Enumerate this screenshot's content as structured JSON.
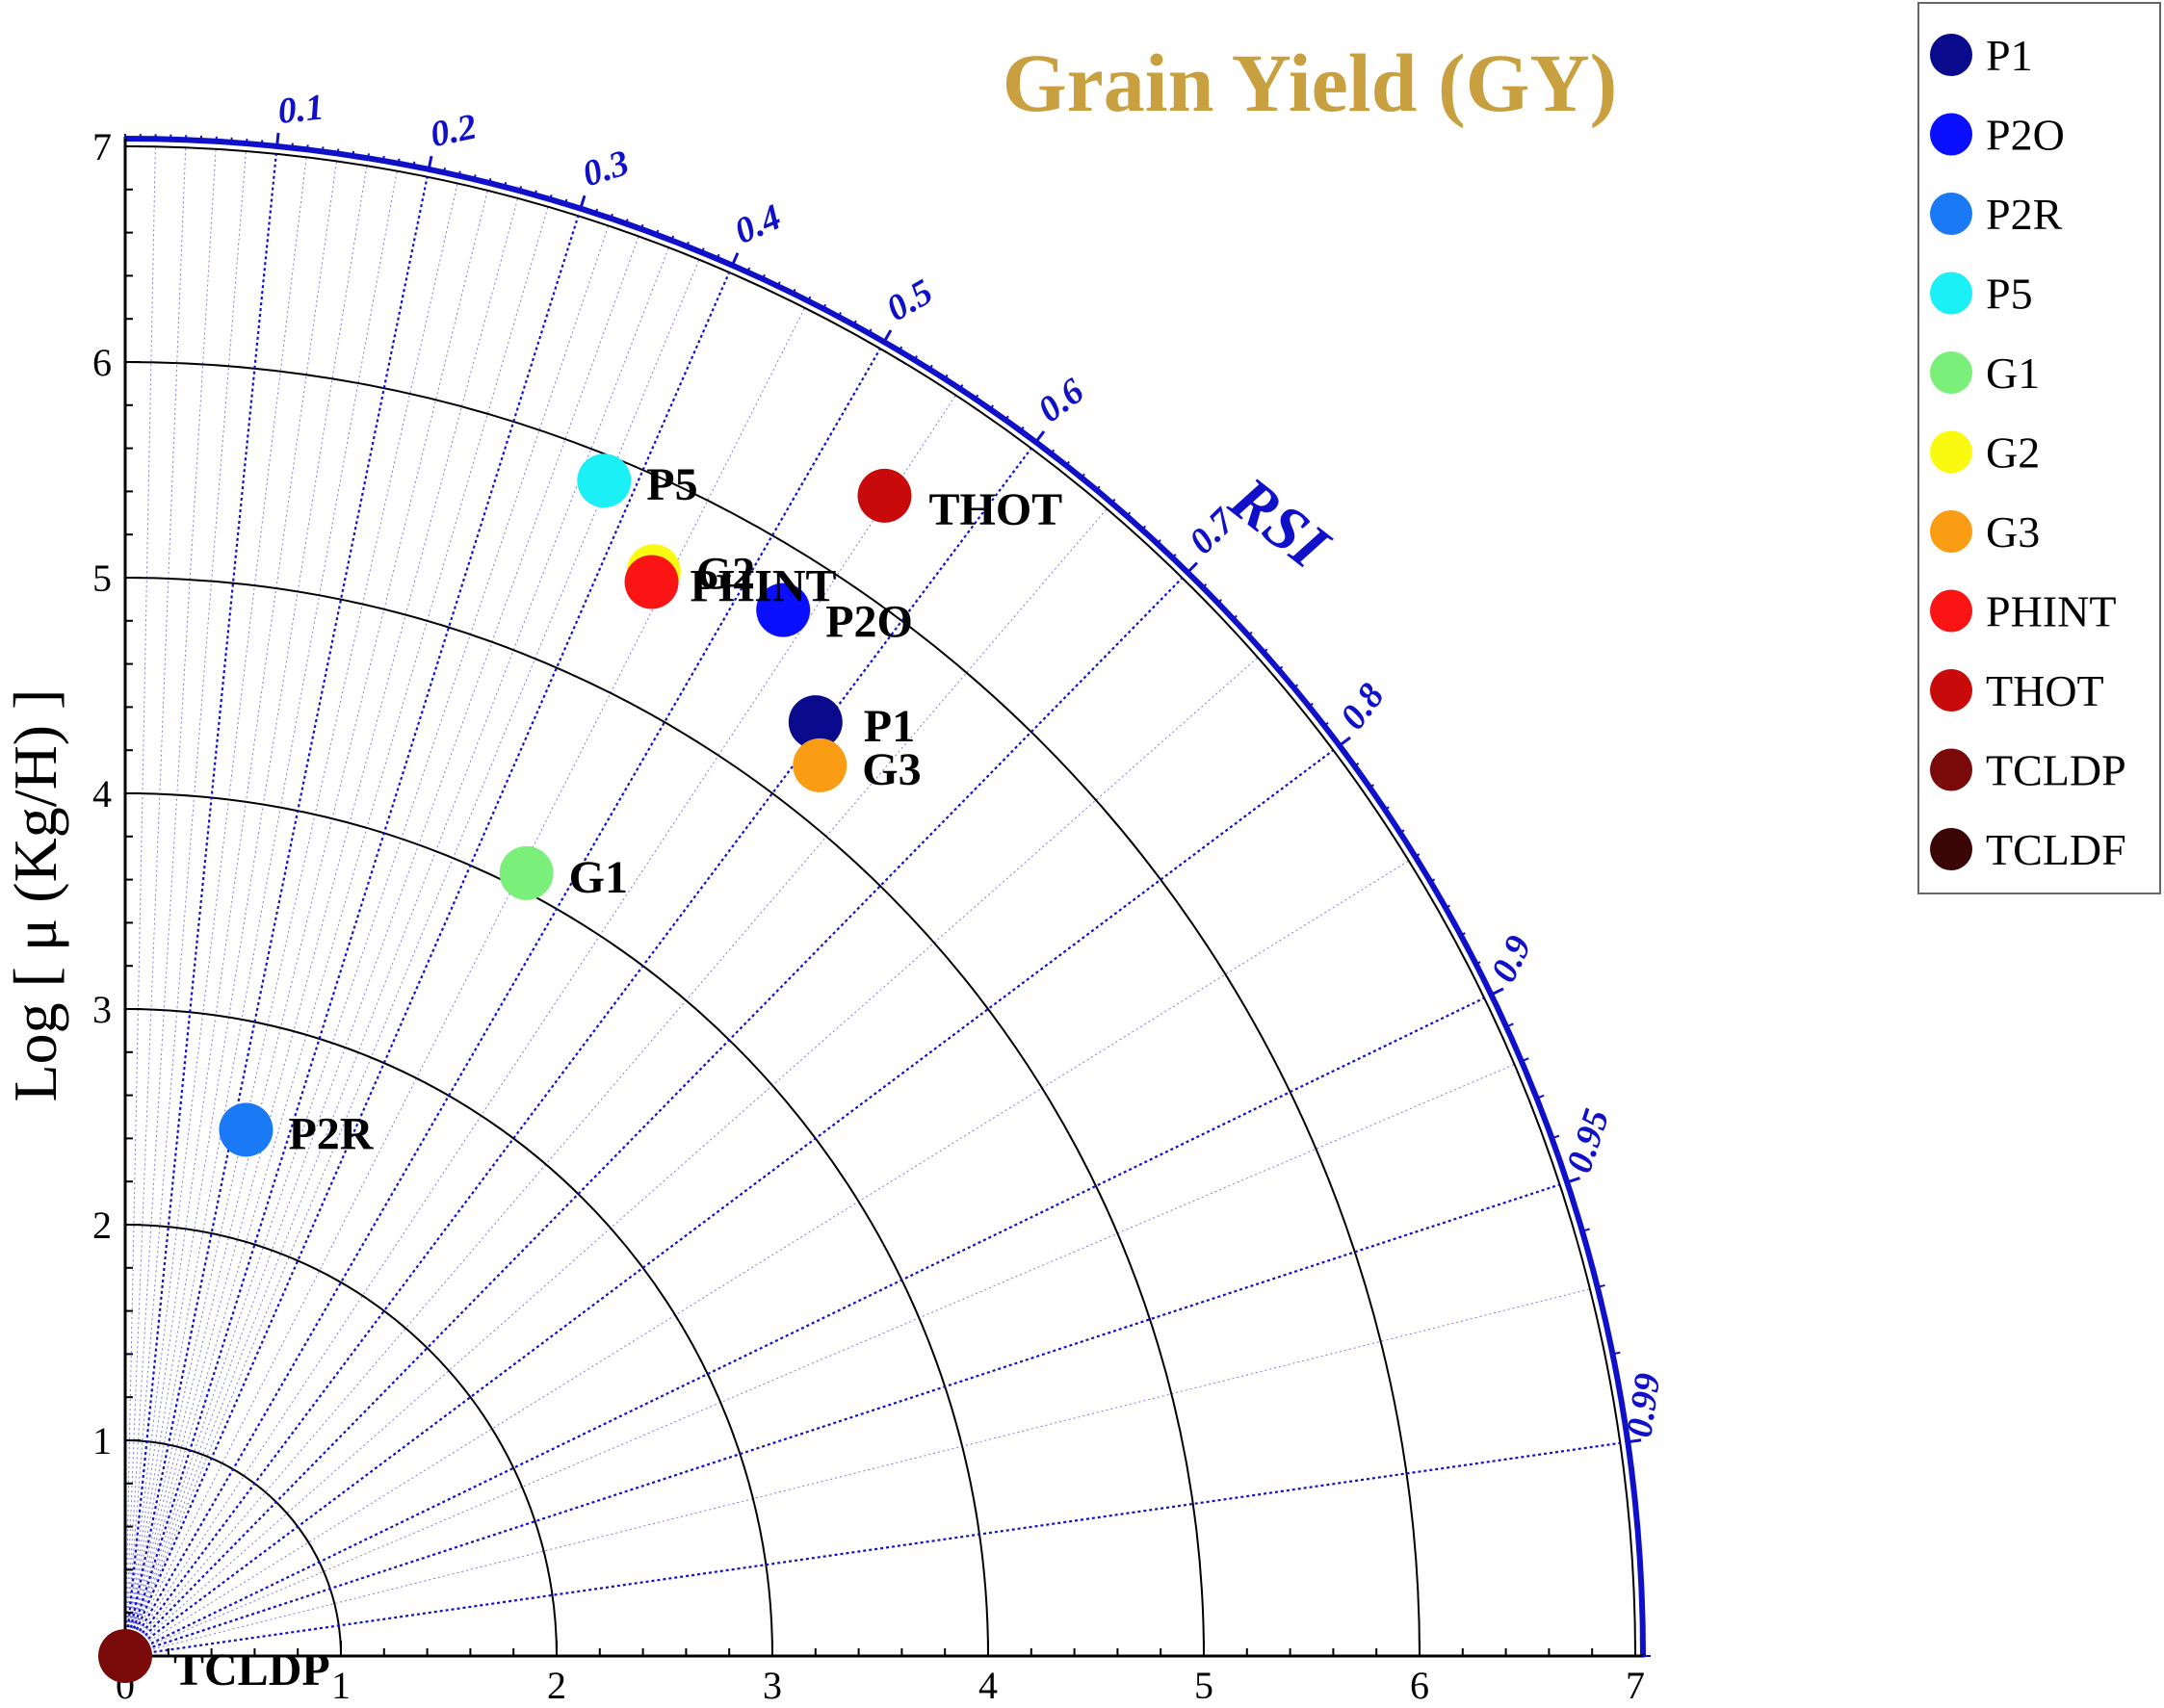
{
  "chart_data": {
    "type": "scatter",
    "subtype": "taylor-diagram",
    "title": "Grain Yield (GY)",
    "ylabel": "Log [ μ (Kg/H) ]",
    "xlabel": "",
    "arc_label": "RSI",
    "xlim": [
      0,
      7
    ],
    "ylim": [
      0,
      7
    ],
    "x_ticks": [
      "0",
      "1",
      "2",
      "3",
      "4",
      "5",
      "6",
      "7"
    ],
    "y_ticks": [
      "1",
      "2",
      "3",
      "4",
      "5",
      "6",
      "7"
    ],
    "radial_arcs": [
      1,
      2,
      3,
      4,
      5,
      6,
      7
    ],
    "correlation_ticks": [
      "0.1",
      "0.2",
      "0.3",
      "0.4",
      "0.5",
      "0.6",
      "0.7",
      "0.8",
      "0.9",
      "0.95",
      "0.99"
    ],
    "grid": true,
    "legend_position": "top-right",
    "legend": [
      {
        "name": "P1",
        "color": "#0a0a8c"
      },
      {
        "name": "P2O",
        "color": "#0a10ff"
      },
      {
        "name": "P2R",
        "color": "#1a7af5"
      },
      {
        "name": "P5",
        "color": "#1af0f5"
      },
      {
        "name": "G1",
        "color": "#7af07a"
      },
      {
        "name": "G2",
        "color": "#fafa10"
      },
      {
        "name": "G3",
        "color": "#fa9c14"
      },
      {
        "name": "PHINT",
        "color": "#fa1414"
      },
      {
        "name": "THOT",
        "color": "#c80a0a"
      },
      {
        "name": "TCLDP",
        "color": "#7a0a0a"
      },
      {
        "name": "TCLDF",
        "color": "#3c0505"
      }
    ],
    "points": [
      {
        "name": "P1",
        "x": 3.2,
        "y": 4.33,
        "color": "#0a0a8c"
      },
      {
        "name": "P2O",
        "x": 3.05,
        "y": 4.85,
        "color": "#0a10ff"
      },
      {
        "name": "P2R",
        "x": 0.56,
        "y": 2.44,
        "color": "#1a7af5"
      },
      {
        "name": "P5",
        "x": 2.22,
        "y": 5.45,
        "color": "#1af0f5"
      },
      {
        "name": "G1",
        "x": 1.86,
        "y": 3.63,
        "color": "#7af07a"
      },
      {
        "name": "G2",
        "x": 2.45,
        "y": 5.03,
        "color": "#fafa10"
      },
      {
        "name": "G3",
        "x": 3.22,
        "y": 4.13,
        "color": "#fa9c14"
      },
      {
        "name": "PHINT",
        "x": 2.44,
        "y": 4.98,
        "color": "#fa1414"
      },
      {
        "name": "THOT",
        "x": 3.52,
        "y": 5.38,
        "color": "#c80a0a"
      },
      {
        "name": "TCLDP",
        "x": 0.0,
        "y": 0.0,
        "color": "#7a0a0a"
      }
    ],
    "point_labels": [
      {
        "text": "P1",
        "of": "P1"
      },
      {
        "text": "P2O",
        "of": "P2O"
      },
      {
        "text": "P2R",
        "of": "P2R"
      },
      {
        "text": "P5",
        "of": "P5"
      },
      {
        "text": "G1",
        "of": "G1"
      },
      {
        "text": "G2",
        "of": "G2"
      },
      {
        "text": "G3",
        "of": "G3"
      },
      {
        "text": "PHINT",
        "of": "PHINT"
      },
      {
        "text": "THOT",
        "of": "THOT"
      },
      {
        "text": "TCLDP",
        "of": "TCLDP"
      }
    ],
    "colors": {
      "correlation_lines": "#1010c8",
      "outer_arc": "#1010c8",
      "title": "#c8a040"
    }
  }
}
